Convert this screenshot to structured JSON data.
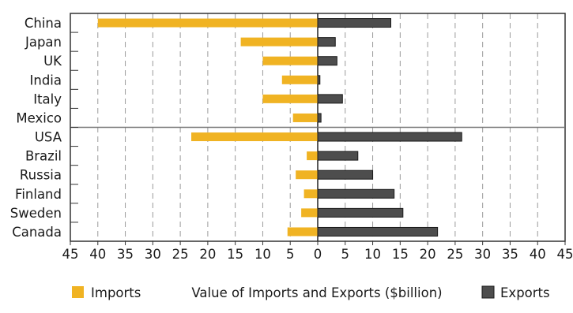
{
  "chart_data": {
    "type": "bar",
    "orientation": "horizontal",
    "layout": "diverging",
    "xlabel": "Value of Imports and Exports ($billion)",
    "xlim": [
      -45,
      45
    ],
    "xticks": [
      -45,
      -40,
      -35,
      -30,
      -25,
      -20,
      -15,
      -10,
      -5,
      0,
      5,
      10,
      15,
      20,
      25,
      30,
      35,
      40,
      45
    ],
    "xtick_labels": [
      "45",
      "40",
      "35",
      "30",
      "25",
      "20",
      "15",
      "10",
      "5",
      "0",
      "5",
      "10",
      "15",
      "20",
      "25",
      "30",
      "35",
      "40",
      "45"
    ],
    "grid": true,
    "group_divider_after": "Mexico",
    "legend_position": "bottom",
    "categories": [
      "China",
      "Japan",
      "UK",
      "India",
      "Italy",
      "Mexico",
      "USA",
      "Brazil",
      "Russia",
      "Finland",
      "Sweden",
      "Canada"
    ],
    "series": [
      {
        "name": "Imports",
        "side": "left",
        "color": "#f0b323",
        "values": [
          40,
          14,
          10,
          6.5,
          10,
          4.5,
          23,
          2,
          4,
          2.5,
          3,
          5.5
        ]
      },
      {
        "name": "Exports",
        "side": "right",
        "color": "#4d4d4d",
        "values": [
          13.3,
          3.2,
          3.5,
          0.4,
          4.5,
          0.6,
          26.2,
          7.3,
          10,
          13.9,
          15.5,
          21.8
        ]
      }
    ]
  }
}
